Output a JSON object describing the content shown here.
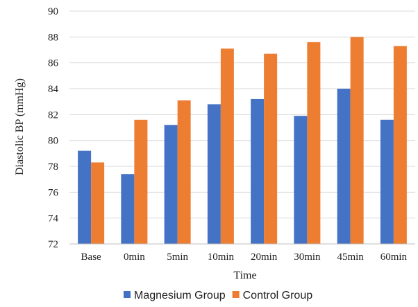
{
  "chart_data": {
    "type": "bar",
    "categories": [
      "Base",
      "0min",
      "5min",
      "10min",
      "20min",
      "30min",
      "45min",
      "60min"
    ],
    "series": [
      {
        "name": "Magnesium Group",
        "color": "#4472C4",
        "values": [
          79.2,
          77.4,
          81.2,
          82.8,
          83.2,
          81.9,
          84.0,
          81.6
        ]
      },
      {
        "name": "Control Group",
        "color": "#ED7D31",
        "values": [
          78.3,
          81.6,
          83.1,
          87.1,
          86.7,
          87.6,
          88.0,
          87.3
        ]
      }
    ],
    "title": "",
    "xlabel": "Time",
    "ylabel": "Diastolic BP (mmHg)",
    "ylim": [
      72,
      90
    ],
    "yticks": [
      72,
      74,
      76,
      78,
      80,
      82,
      84,
      86,
      88,
      90
    ],
    "grid": true,
    "legend": "bottom"
  }
}
